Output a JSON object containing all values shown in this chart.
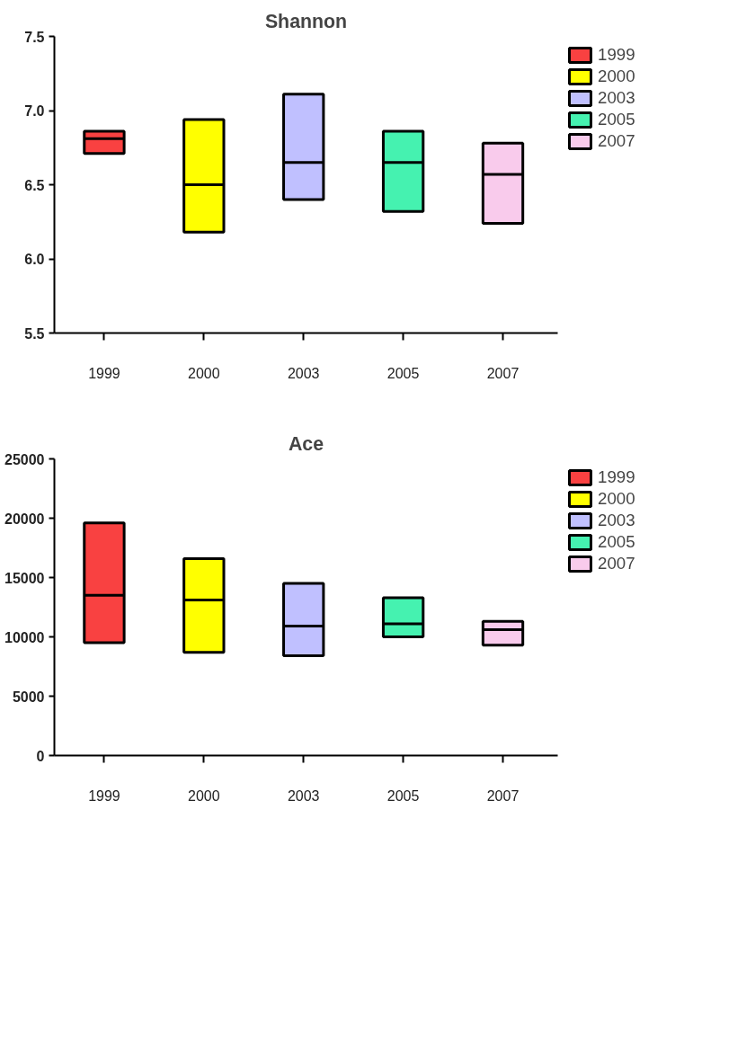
{
  "chart_data": [
    {
      "type": "box",
      "title": "Shannon",
      "categories": [
        "1999",
        "2000",
        "2003",
        "2005",
        "2007"
      ],
      "series": [
        {
          "name": "1999",
          "color": "#f94141",
          "boxes": [
            {
              "low": 6.71,
              "q1": 6.71,
              "median": 6.81,
              "q3": 6.86,
              "high": 6.86
            },
            null,
            null,
            null,
            null
          ]
        },
        {
          "name": "2000",
          "color": "#ffff00",
          "boxes": [
            null,
            {
              "low": 6.18,
              "q1": 6.18,
              "median": 6.5,
              "q3": 6.94,
              "high": 6.94
            },
            null,
            null,
            null
          ]
        },
        {
          "name": "2003",
          "color": "#c0c0ff",
          "boxes": [
            null,
            null,
            {
              "low": 6.4,
              "q1": 6.4,
              "median": 6.65,
              "q3": 7.11,
              "high": 7.11
            },
            null,
            null
          ]
        },
        {
          "name": "2005",
          "color": "#45f2b0",
          "boxes": [
            null,
            null,
            null,
            {
              "low": 6.32,
              "q1": 6.32,
              "median": 6.65,
              "q3": 6.86,
              "high": 6.86
            },
            null
          ]
        },
        {
          "name": "2007",
          "color": "#f9cbec",
          "boxes": [
            null,
            null,
            null,
            null,
            {
              "low": 6.24,
              "q1": 6.24,
              "median": 6.57,
              "q3": 6.78,
              "high": 6.78
            }
          ]
        }
      ],
      "ylim": [
        5.5,
        7.5
      ],
      "yticks": [
        {
          "value": 5.5,
          "label": "5.5"
        },
        {
          "value": 6,
          "label": "6.0"
        },
        {
          "value": 6.5,
          "label": "6.5"
        },
        {
          "value": 7,
          "label": "7.0"
        },
        {
          "value": 7.5,
          "label": "7.5"
        }
      ],
      "grid": false,
      "legend": "right"
    },
    {
      "type": "box",
      "title": "Ace",
      "categories": [
        "1999",
        "2000",
        "2003",
        "2005",
        "2007"
      ],
      "series": [
        {
          "name": "1999",
          "color": "#f94141",
          "boxes": [
            {
              "low": 9500,
              "q1": 9500,
              "median": 13500,
              "q3": 19600,
              "high": 19600
            },
            null,
            null,
            null,
            null
          ]
        },
        {
          "name": "2000",
          "color": "#ffff00",
          "boxes": [
            null,
            {
              "low": 8700,
              "q1": 8700,
              "median": 13100,
              "q3": 16600,
              "high": 16600
            },
            null,
            null,
            null
          ]
        },
        {
          "name": "2003",
          "color": "#c0c0ff",
          "boxes": [
            null,
            null,
            {
              "low": 8400,
              "q1": 8400,
              "median": 10900,
              "q3": 14500,
              "high": 14500
            },
            null,
            null
          ]
        },
        {
          "name": "2005",
          "color": "#45f2b0",
          "boxes": [
            null,
            null,
            null,
            {
              "low": 10000,
              "q1": 10000,
              "median": 11100,
              "q3": 13300,
              "high": 13300
            },
            null
          ]
        },
        {
          "name": "2007",
          "color": "#f9cbec",
          "boxes": [
            null,
            null,
            null,
            null,
            {
              "low": 9300,
              "q1": 9300,
              "median": 10600,
              "q3": 11300,
              "high": 11300
            }
          ]
        }
      ],
      "ylim": [
        0,
        25000
      ],
      "yticks": [
        0,
        5000,
        10000,
        15000,
        20000,
        25000
      ],
      "grid": false,
      "legend": "right"
    }
  ]
}
